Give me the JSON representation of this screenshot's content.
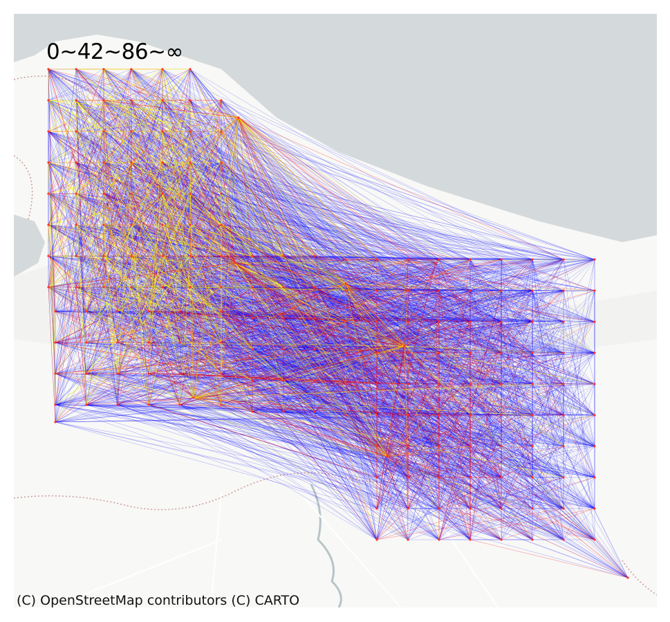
{
  "map": {
    "legend_text": "0~42~86~∞",
    "attribution": "(C) OpenStreetMap contributors (C) CARTO",
    "basemap_style": "CARTO light",
    "colors": {
      "water": "#d4dadc",
      "land": "#f8f8f6",
      "land_shade": "#eef0ec",
      "border": "#c89a9a",
      "road": "#ffffff",
      "river": "#b7c4c8"
    },
    "flow_classes": [
      {
        "range": "0~42",
        "color": "#0000ff"
      },
      {
        "range": "42~86",
        "color": "#ff0000"
      },
      {
        "range": "86~∞",
        "color": "#ffff00"
      }
    ]
  }
}
